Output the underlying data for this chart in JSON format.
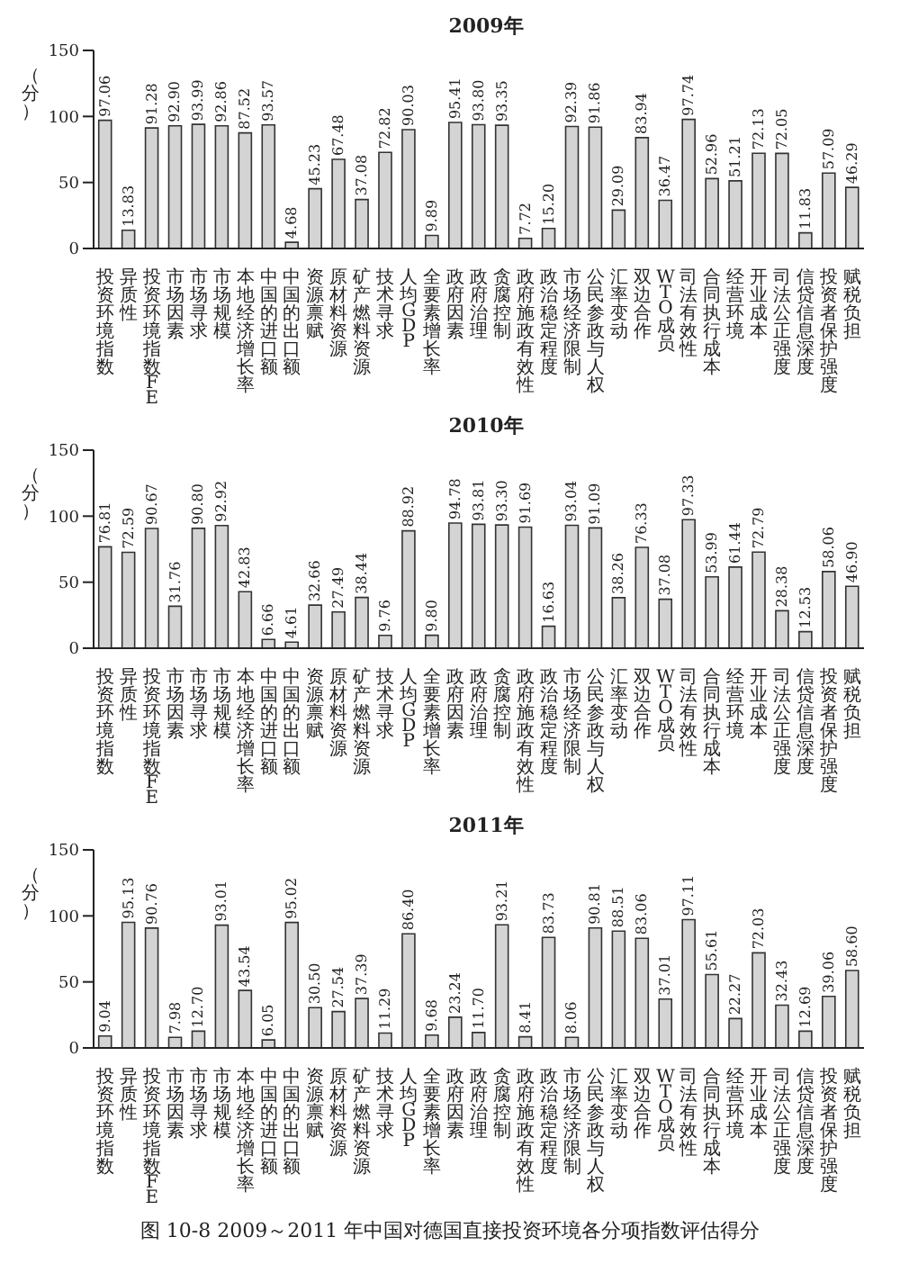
{
  "chart_data": [
    {
      "type": "bar",
      "title": "2009年",
      "ylabel": "（分）",
      "color": "#d4d4d4",
      "ylim": [
        0,
        150
      ],
      "yticks": [
        0,
        50,
        100,
        150
      ],
      "categories": [
        "投资环境指数",
        "异质性",
        "投资环境指数FE",
        "市场因素",
        "市场寻求",
        "市场规模",
        "本地经济增长率",
        "中国的进口额",
        "中国的出口额",
        "资源禀赋",
        "原材料资源",
        "矿产燃料资源",
        "技术寻求",
        "人均GDP",
        "全要素增长率",
        "政府因素",
        "政府治理",
        "贪腐控制",
        "政府施政有效性",
        "政治稳定程度",
        "市场经济限制",
        "公民参政与人权",
        "汇率变动",
        "双边合作",
        "WTO成员",
        "司法有效性",
        "合同执行成本",
        "经营环境",
        "开业成本",
        "司法公正强度",
        "信贷信息深度",
        "投资者保护强度",
        "赋税负担"
      ],
      "values": [
        97.06,
        13.83,
        91.28,
        92.9,
        93.99,
        92.86,
        87.52,
        93.57,
        4.68,
        45.23,
        67.48,
        37.08,
        72.82,
        90.03,
        9.89,
        95.41,
        93.8,
        93.35,
        7.72,
        15.2,
        92.39,
        91.86,
        29.09,
        83.94,
        36.47,
        97.74,
        52.96,
        51.21,
        72.13,
        72.05,
        11.83,
        57.09,
        46.29
      ],
      "value_labels": [
        "97.06",
        "13.83",
        "91.28",
        "92.90",
        "93.99",
        "92.86",
        "87.52",
        "93.57",
        "4.68",
        "45.23",
        "67.48",
        "37.08",
        "72.82",
        "90.03",
        "9.89",
        "95.41",
        "93.80",
        "93.35",
        "7.72",
        "15.20",
        "92.39",
        "91.86",
        "29.09",
        "83.94",
        "36.47",
        "97.74",
        "52.96",
        "51.21",
        "72.13",
        "72.05",
        "11.83",
        "57.09",
        "46.29"
      ]
    },
    {
      "type": "bar",
      "title": "2010年",
      "ylabel": "（分）",
      "color": "#d4d4d4",
      "ylim": [
        0,
        150
      ],
      "yticks": [
        0,
        50,
        100,
        150
      ],
      "categories": [
        "投资环境指数",
        "异质性",
        "投资环境指数FE",
        "市场因素",
        "市场寻求",
        "市场规模",
        "本地经济增长率",
        "中国的进口额",
        "中国的出口额",
        "资源禀赋",
        "原材料资源",
        "矿产燃料资源",
        "技术寻求",
        "人均GDP",
        "全要素增长率",
        "政府因素",
        "政府治理",
        "贪腐控制",
        "政府施政有效性",
        "政治稳定程度",
        "市场经济限制",
        "公民参政与人权",
        "汇率变动",
        "双边合作",
        "WTO成员",
        "司法有效性",
        "合同执行成本",
        "经营环境",
        "开业成本",
        "司法公正强度",
        "信贷信息深度",
        "投资者保护强度",
        "赋税负担"
      ],
      "values": [
        76.81,
        72.59,
        90.67,
        31.76,
        90.8,
        92.92,
        42.83,
        6.66,
        4.61,
        32.66,
        27.49,
        38.44,
        9.76,
        88.92,
        9.8,
        94.78,
        93.81,
        93.3,
        91.69,
        16.63,
        93.04,
        91.09,
        38.26,
        76.33,
        37.08,
        97.33,
        53.99,
        61.44,
        72.79,
        28.38,
        12.53,
        58.06,
        46.9
      ],
      "value_labels": [
        "76.81",
        "72.59",
        "90.67",
        "31.76",
        "90.80",
        "92.92",
        "42.83",
        "6.66",
        "4.61",
        "32.66",
        "27.49",
        "38.44",
        "9.76",
        "88.92",
        "9.80",
        "94.78",
        "93.81",
        "93.30",
        "91.69",
        "16.63",
        "93.04",
        "91.09",
        "38.26",
        "76.33",
        "37.08",
        "97.33",
        "53.99",
        "61.44",
        "72.79",
        "28.38",
        "12.53",
        "58.06",
        "46.90"
      ]
    },
    {
      "type": "bar",
      "title": "2011年",
      "ylabel": "（分）",
      "color": "#d4d4d4",
      "ylim": [
        0,
        150
      ],
      "yticks": [
        0,
        50,
        100,
        150
      ],
      "categories": [
        "投资环境指数",
        "异质性",
        "投资环境指数FE",
        "市场因素",
        "市场寻求",
        "市场规模",
        "本地经济增长率",
        "中国的进口额",
        "中国的出口额",
        "资源禀赋",
        "原材料资源",
        "矿产燃料资源",
        "技术寻求",
        "人均GDP",
        "全要素增长率",
        "政府因素",
        "政府治理",
        "贪腐控制",
        "政府施政有效性",
        "政治稳定程度",
        "市场经济限制",
        "公民参政与人权",
        "汇率变动",
        "双边合作",
        "WTO成员",
        "司法有效性",
        "合同执行成本",
        "经营环境",
        "开业成本",
        "司法公正强度",
        "信贷信息深度",
        "投资者保护强度",
        "赋税负担"
      ],
      "values": [
        9.04,
        95.13,
        90.76,
        7.98,
        12.7,
        93.01,
        43.54,
        6.05,
        95.02,
        30.5,
        27.54,
        37.39,
        11.29,
        86.4,
        9.68,
        23.24,
        11.7,
        93.21,
        8.41,
        83.73,
        8.06,
        90.81,
        88.51,
        83.06,
        37.01,
        97.11,
        55.61,
        22.27,
        72.03,
        32.43,
        12.69,
        39.06,
        58.6
      ],
      "value_labels": [
        "9.04",
        "95.13",
        "90.76",
        "7.98",
        "12.70",
        "93.01",
        "43.54",
        "6.05",
        "95.02",
        "30.50",
        "27.54",
        "37.39",
        "11.29",
        "86.40",
        "9.68",
        "23.24",
        "11.70",
        "93.21",
        "8.41",
        "83.73",
        "8.06",
        "90.81",
        "88.51",
        "83.06",
        "37.01",
        "97.11",
        "55.61",
        "22.27",
        "72.03",
        "32.43",
        "12.69",
        "39.06",
        "58.60"
      ],
      "annotations": [
        "图 10-8 2009～2011 年中国对德国直接投资环境各分项指数评估得分"
      ]
    }
  ]
}
